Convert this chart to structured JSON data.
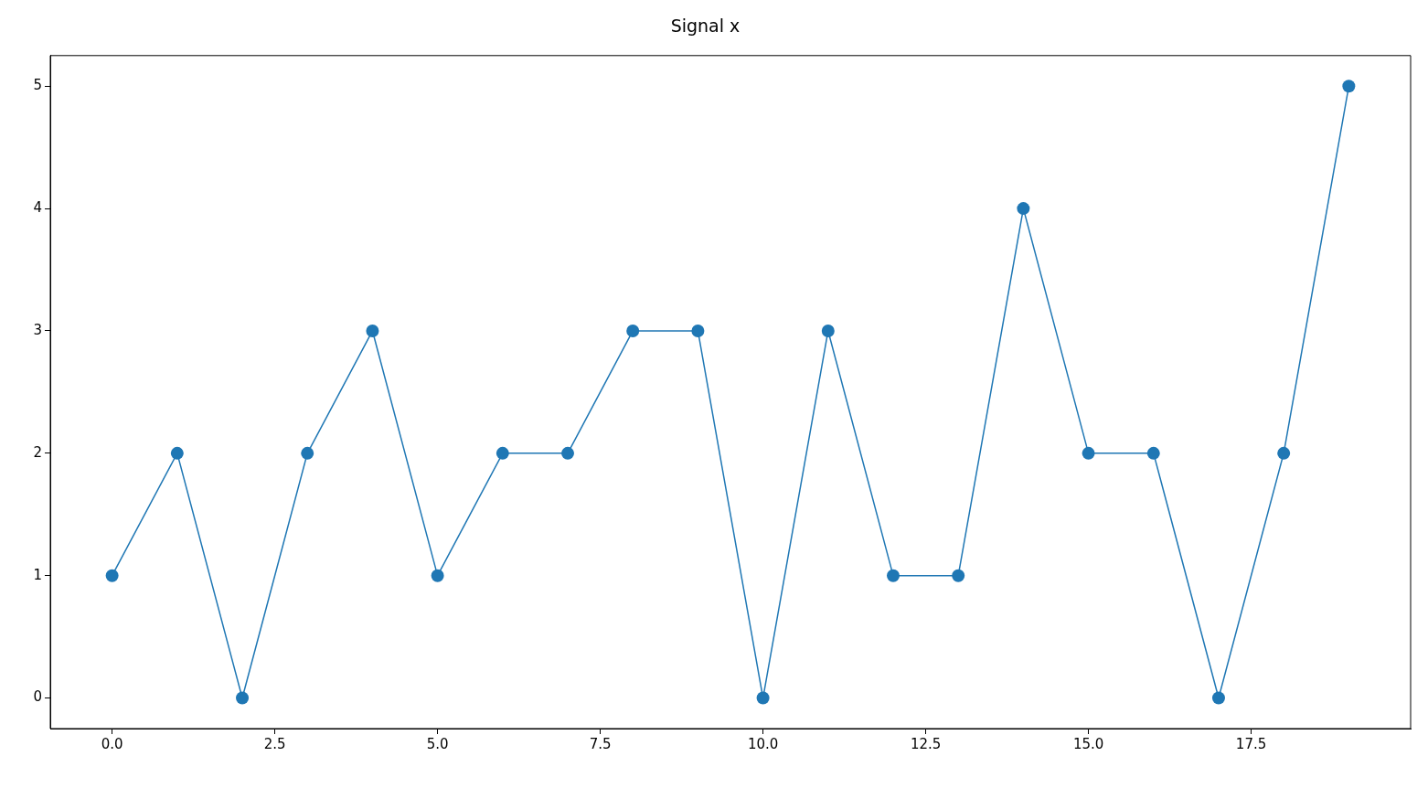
{
  "chart_data": {
    "type": "line",
    "title": "Signal x",
    "x": [
      0,
      1,
      2,
      3,
      4,
      5,
      6,
      7,
      8,
      9,
      10,
      11,
      12,
      13,
      14,
      15,
      16,
      17,
      18,
      19
    ],
    "series": [
      {
        "color": "#1f77b4",
        "values": [
          1,
          2,
          0,
          2,
          3,
          1,
          2,
          2,
          3,
          3,
          0,
          3,
          1,
          1,
          4,
          2,
          2,
          0,
          2,
          5
        ]
      }
    ],
    "xlim": [
      -0.95,
      19.95
    ],
    "xticks": [
      {
        "value": 0,
        "label": "0.0"
      },
      {
        "value": 2.5,
        "label": "2.5"
      },
      {
        "value": 5,
        "label": "5.0"
      },
      {
        "value": 7.5,
        "label": "7.5"
      },
      {
        "value": 10,
        "label": "10.0"
      },
      {
        "value": 12.5,
        "label": "12.5"
      },
      {
        "value": 15,
        "label": "15.0"
      },
      {
        "value": 17.5,
        "label": "17.5"
      }
    ],
    "ylim": [
      -0.25,
      5.25
    ],
    "yticks": [
      0,
      1,
      2,
      3,
      4,
      5
    ],
    "grid": false,
    "legend": false,
    "marker": "circle",
    "line_style": "solid"
  }
}
